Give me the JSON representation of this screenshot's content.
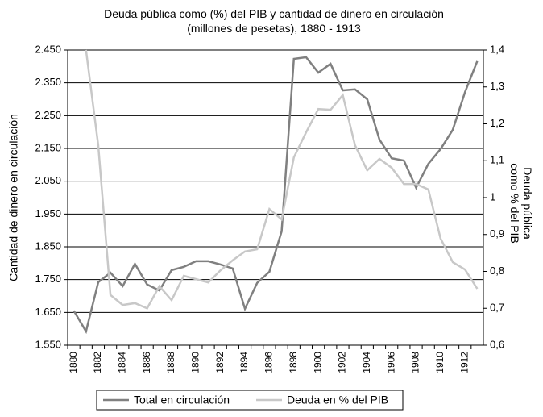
{
  "chart_data": {
    "type": "line",
    "title": "Deuda pública como (%) del PIB y cantidad de dinero en circulación (millones de pesetas), 1880 - 1913",
    "y_label": "Cantidad de dinero en circulación",
    "y2_label": "Deuda pública como % del PIB",
    "categories": [
      "1880",
      null,
      "1882",
      null,
      "1884",
      null,
      "1886",
      null,
      "1888",
      null,
      "1890",
      null,
      "1892",
      null,
      "1894",
      null,
      "1896",
      null,
      "1898",
      null,
      "1900",
      null,
      "1902",
      null,
      "1904",
      null,
      "1906",
      null,
      "1908",
      null,
      "1910",
      null,
      "1912",
      null
    ],
    "series": [
      {
        "name": "Total en circulación",
        "color": "#808080",
        "values": [
          1655,
          1592,
          1742,
          1771,
          1730,
          1798,
          1735,
          1717,
          1779,
          1789,
          1806,
          1806,
          1796,
          1784,
          1661,
          1740,
          1774,
          1897,
          2423,
          2428,
          2381,
          2408,
          2327,
          2330,
          2300,
          2177,
          2120,
          2113,
          2030,
          2103,
          2148,
          2207,
          2322,
          2416
        ]
      },
      {
        "name": "Deuda en % del PIB",
        "color": "#c8c8c8",
        "axis": "y2",
        "values": [
          null,
          1.4,
          1.142,
          0.736,
          0.709,
          0.714,
          0.7,
          0.76,
          0.722,
          0.788,
          0.779,
          0.77,
          0.803,
          0.83,
          0.854,
          0.86,
          0.969,
          0.941,
          1.109,
          1.177,
          1.24,
          1.238,
          1.278,
          1.142,
          1.074,
          1.105,
          1.081,
          1.037,
          1.037,
          1.022,
          0.889,
          0.825,
          0.805,
          0.753
        ]
      }
    ],
    "ylim": [
      1550,
      2450
    ],
    "yticks": [
      {
        "value": 1550,
        "label": "1.550"
      },
      {
        "value": 1650,
        "label": "1.650"
      },
      {
        "value": 1750,
        "label": "1.750"
      },
      {
        "value": 1850,
        "label": "1.850"
      },
      {
        "value": 1950,
        "label": "1.950"
      },
      {
        "value": 2050,
        "label": "2.050"
      },
      {
        "value": 2150,
        "label": "2.150"
      },
      {
        "value": 2250,
        "label": "2.250"
      },
      {
        "value": 2350,
        "label": "2.350"
      },
      {
        "value": 2450,
        "label": "2.450"
      }
    ],
    "y2lim": [
      0.6,
      1.4
    ],
    "y2ticks": [
      {
        "value": 0.6,
        "label": "0,6"
      },
      {
        "value": 0.7,
        "label": "0,7"
      },
      {
        "value": 0.8,
        "label": "0,8"
      },
      {
        "value": 0.9,
        "label": "0,9"
      },
      1,
      {
        "value": 1.1,
        "label": "1,1"
      },
      {
        "value": 1.2,
        "label": "1,2"
      },
      {
        "value": 1.3,
        "label": "1,3"
      },
      {
        "value": 1.4,
        "label": "1,4"
      }
    ],
    "grid": true
  }
}
